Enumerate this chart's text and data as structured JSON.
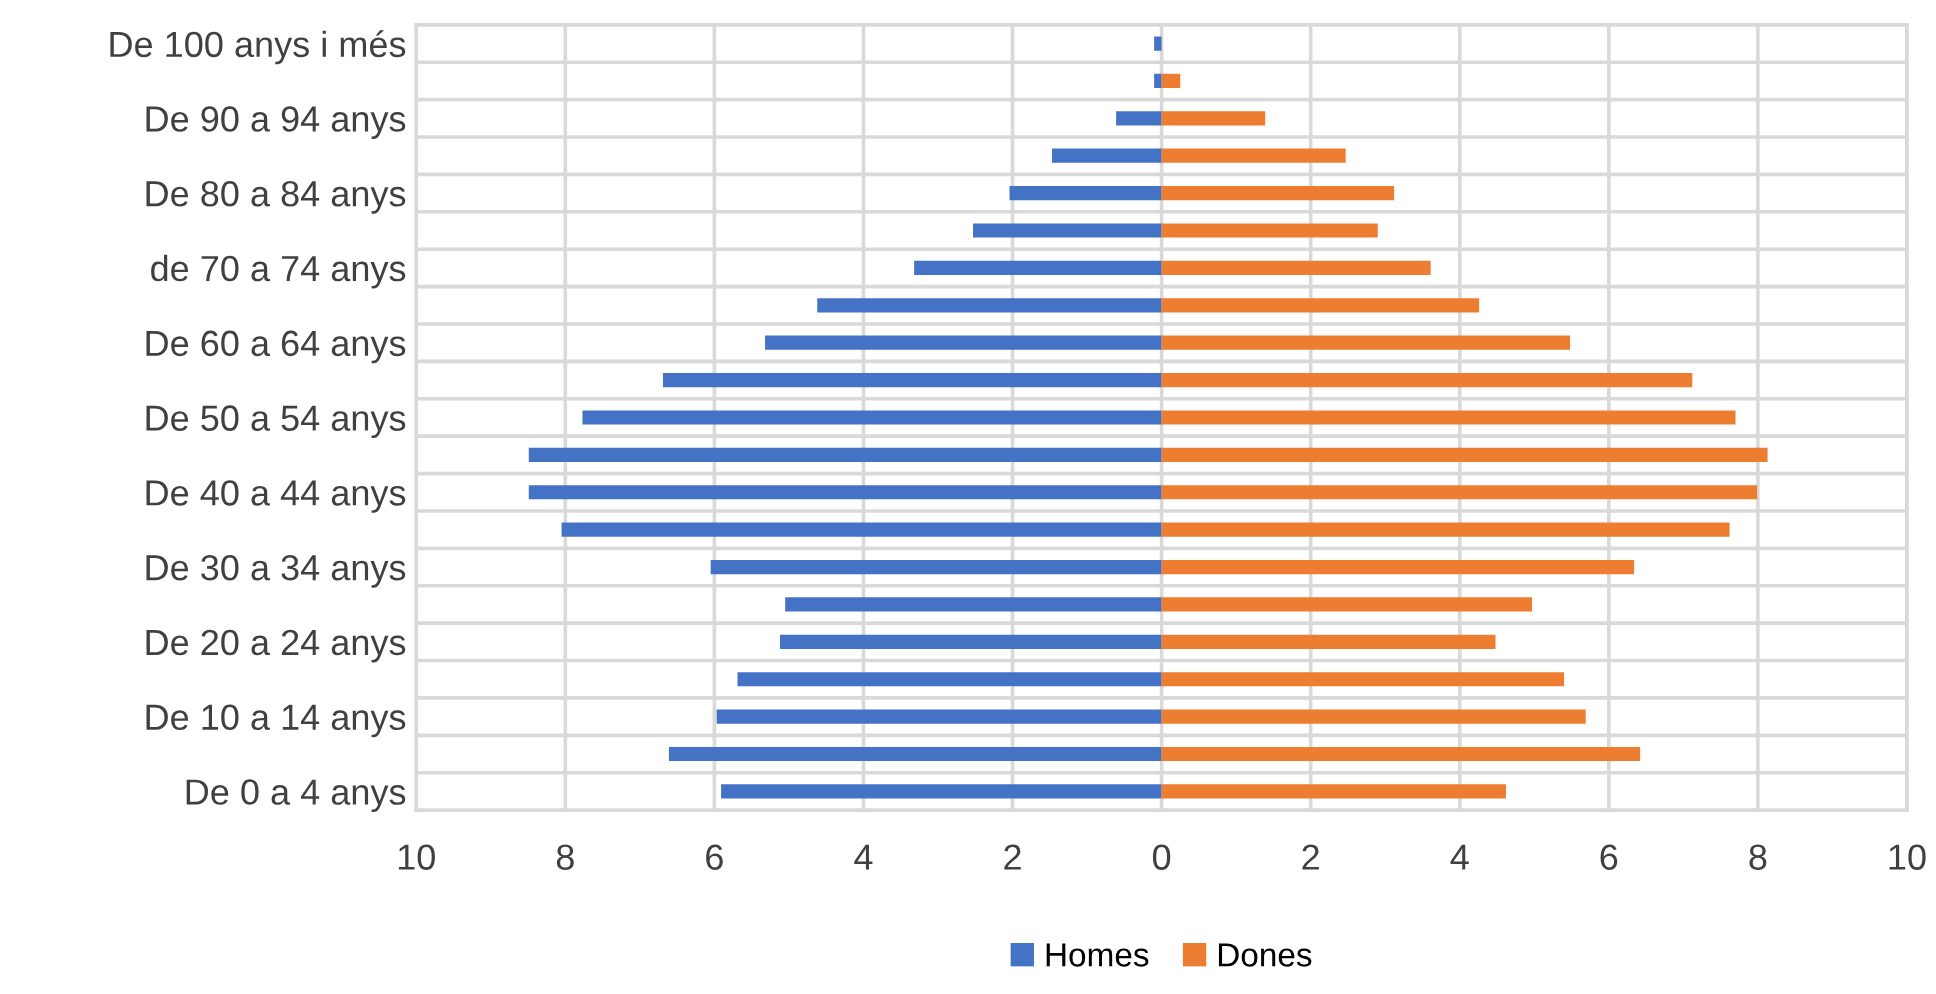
{
  "chart_data": {
    "type": "bar",
    "orientation": "horizontal",
    "categories": [
      "De 100 anys i més",
      null,
      "De 90 a 94 anys",
      null,
      "De 80 a 84 anys",
      null,
      "de 70 a 74 anys",
      null,
      "De 60 a 64 anys",
      null,
      "De 50 a 54 anys",
      null,
      "De 40 a 44 anys",
      null,
      "De 30 a 34 anys",
      null,
      "De 20 a 24 anys",
      null,
      "De 10 a 14 anys",
      null,
      "De 0 a 4 anys"
    ],
    "series": [
      {
        "name": "Homes",
        "color": "#4472c4",
        "values": [
          -0.1,
          -0.1,
          -0.61,
          -1.47,
          -2.04,
          -2.53,
          -3.32,
          -4.62,
          -5.32,
          -6.69,
          -7.77,
          -8.49,
          -8.49,
          -8.05,
          -6.05,
          -5.05,
          -5.12,
          -5.69,
          -5.97,
          -6.61,
          -5.91
        ]
      },
      {
        "name": "Dones",
        "color": "#ed7d31",
        "values": [
          0.0,
          0.25,
          1.39,
          2.47,
          3.12,
          2.9,
          3.61,
          4.26,
          5.48,
          7.12,
          7.7,
          8.13,
          7.99,
          7.62,
          6.34,
          4.97,
          4.48,
          5.4,
          5.69,
          6.42,
          4.62
        ]
      }
    ],
    "xlim": [
      -10,
      10
    ],
    "xticks": [
      {
        "value": -10,
        "label": "10"
      },
      {
        "value": -8,
        "label": "8"
      },
      {
        "value": -6,
        "label": "6"
      },
      {
        "value": -4,
        "label": "4"
      },
      {
        "value": -2,
        "label": "2"
      },
      0,
      2,
      4,
      6,
      8,
      10
    ],
    "stacked": true,
    "grid": true,
    "legend": "bottom"
  }
}
